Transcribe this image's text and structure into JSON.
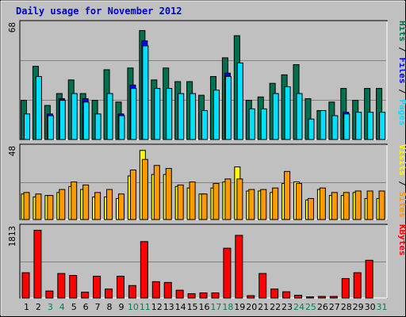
{
  "chart_data": [
    {
      "type": "bar",
      "title": "Daily usage for November 2012",
      "categories": [
        "1",
        "2",
        "3",
        "4",
        "5",
        "6",
        "7",
        "8",
        "9",
        "10",
        "11",
        "12",
        "13",
        "14",
        "15",
        "16",
        "17",
        "18",
        "19",
        "20",
        "21",
        "22",
        "23",
        "24",
        "25",
        "26",
        "27",
        "28",
        "29",
        "30",
        "31"
      ],
      "weekend_days": [
        "3",
        "4",
        "10",
        "11",
        "17",
        "18",
        "24",
        "25",
        "31"
      ],
      "y_max_label": "68",
      "ylim": [
        0,
        68
      ],
      "legend": [
        "Pages",
        "Files",
        "Hits"
      ],
      "series": [
        {
          "name": "Hits",
          "color": "#007050",
          "values": [
            23,
            43,
            20,
            27,
            35,
            27,
            23,
            41,
            22,
            42,
            64,
            35,
            42,
            34,
            34,
            26,
            37,
            48,
            61,
            23,
            25,
            33,
            38,
            44,
            24,
            17,
            22,
            30,
            23,
            30,
            30
          ]
        },
        {
          "name": "Files",
          "color": "#00e0ff",
          "values": [
            15,
            37,
            14,
            23,
            27,
            22,
            15,
            27,
            14,
            30,
            55,
            30,
            30,
            27,
            27,
            17,
            29,
            37,
            45,
            18,
            18,
            27,
            31,
            27,
            12,
            17,
            14,
            15,
            16,
            16,
            16
          ]
        },
        {
          "name": "Pages",
          "color": "#0000ff",
          "values": [
            0,
            0,
            15,
            24,
            0,
            24,
            0,
            0,
            15,
            32,
            58,
            0,
            0,
            0,
            0,
            0,
            0,
            39,
            0,
            0,
            0,
            0,
            0,
            0,
            0,
            0,
            0,
            16,
            0,
            0,
            0
          ]
        }
      ]
    },
    {
      "type": "bar",
      "y_max_label": "48",
      "ylim": [
        0,
        48
      ],
      "legend": [
        "Sites",
        "Visits"
      ],
      "series": [
        {
          "name": "Visits",
          "color": "#ffff00",
          "values": [
            17,
            15,
            16,
            18,
            22,
            20,
            15,
            15,
            14,
            29,
            46,
            30,
            30,
            22,
            21,
            17,
            21,
            25,
            35,
            19,
            19,
            18,
            24,
            25,
            13,
            20,
            16,
            16,
            18,
            14,
            14
          ]
        },
        {
          "name": "Sites",
          "color": "#ff9900",
          "values": [
            18,
            17,
            16,
            20,
            25,
            23,
            18,
            20,
            17,
            33,
            40,
            36,
            34,
            23,
            25,
            17,
            24,
            27,
            27,
            20,
            20,
            21,
            32,
            24,
            14,
            21,
            18,
            18,
            19,
            19,
            19
          ]
        }
      ]
    },
    {
      "type": "bar",
      "y_max_label": "1813",
      "ylim": [
        0,
        1813
      ],
      "legend": [
        "KBytes"
      ],
      "series": [
        {
          "name": "KBytes",
          "color": "#ff0000",
          "values": [
            650,
            1740,
            180,
            630,
            580,
            150,
            560,
            230,
            560,
            320,
            1450,
            420,
            400,
            200,
            110,
            130,
            130,
            1280,
            1610,
            60,
            630,
            230,
            160,
            70,
            30,
            40,
            40,
            500,
            650,
            970,
            0
          ]
        }
      ]
    }
  ]
}
